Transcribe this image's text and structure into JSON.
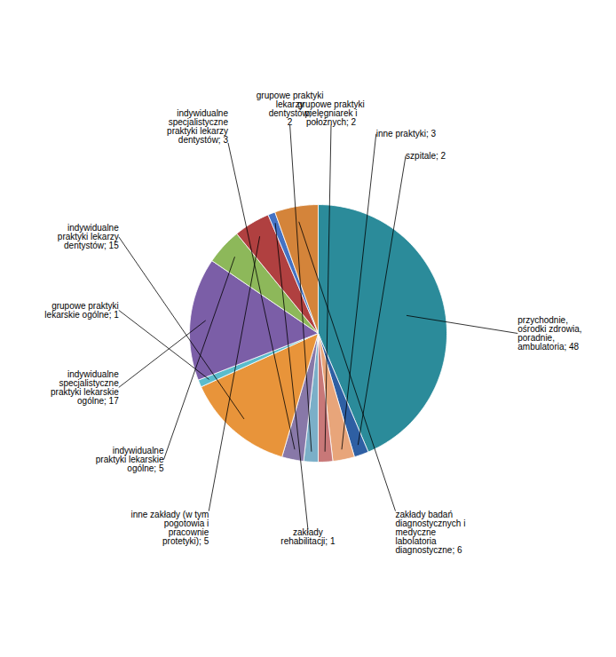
{
  "chart_data": {
    "type": "pie",
    "categories": [
      "przychodnie,\nośrodki zdrowia,\nporadnie,\nambulatoria; 48",
      "szpitale; 2",
      "inne praktyki; 3",
      "grupowe praktyki\npielęgniarek i\npołożnych; 2",
      "grupowe praktyki\nlekarzy\ndentystów;\n2",
      "indywidualne\nspecjalistyczne\npraktyki lekarzy\ndentystów; 3",
      "indywidualne\npraktyki lekarzy\ndentystów; 15",
      "grupowe praktyki\nlekarskie ogólne; 1",
      "indywidualne\nspecjalistyczne\npraktyki lekarskie\nogólne; 17",
      "indywidualne\npraktyki lekarskie\nogólne; 5",
      "inne zakłady (w tym\npogotowia i\npracownie\nprotetyki); 5",
      "zakłady\nrehabilitacji; 1",
      "zakłady badań\ndiagnostycznych i\nmedyczne\nlabolatoria\ndiagnostyczne; 6"
    ],
    "values": [
      48,
      2,
      3,
      2,
      2,
      3,
      15,
      1,
      17,
      5,
      5,
      1,
      6
    ],
    "colors": [
      "#2b8b9a",
      "#2e5fa3",
      "#e8a57a",
      "#c87878",
      "#7bafc8",
      "#8878a8",
      "#e8943a",
      "#5bbccc",
      "#7b5ea7",
      "#8db85a",
      "#b04040",
      "#4472c4",
      "#d4843a"
    ]
  }
}
